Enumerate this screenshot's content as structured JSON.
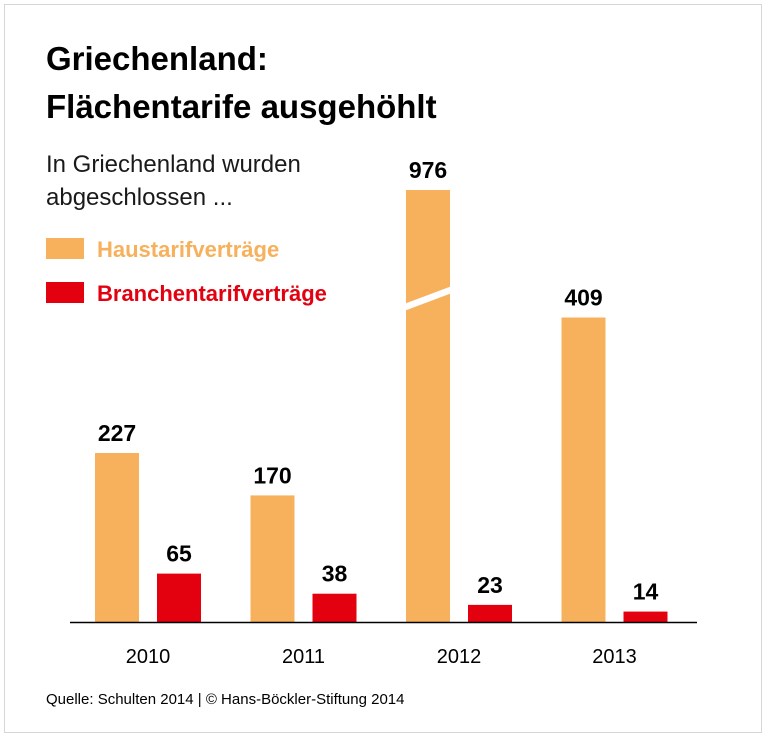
{
  "title_line1": "Griechenland:",
  "title_line2": "Flächentarife ausgehöhlt",
  "subtitle_line1": "In Griechenland wurden",
  "subtitle_line2": "abgeschlossen ...",
  "source": "Quelle: Schulten 2014 | © Hans-Böckler-Stiftung 2014",
  "colors": {
    "haus": "#F7B05B",
    "branchen": "#E3000F",
    "axis": "#000000"
  },
  "chart_data": {
    "type": "bar",
    "title": "Griechenland: Flächentarife ausgehöhlt",
    "categories": [
      "2010",
      "2011",
      "2012",
      "2013"
    ],
    "series": [
      {
        "name": "Haustarifverträge",
        "values": [
          227,
          170,
          976,
          409
        ]
      },
      {
        "name": "Branchentarifverträge",
        "values": [
          65,
          38,
          23,
          14
        ]
      }
    ],
    "value_labels": {
      "Haustarifverträge": [
        "227",
        "170",
        "976",
        "409"
      ],
      "Branchentarifverträge": [
        "65",
        "38",
        "23",
        "14"
      ]
    },
    "broken_axis_note": "2012 Haustarifverträge bar drawn with axis break",
    "xlabel": "",
    "ylabel": "",
    "legend_position": "top-left"
  }
}
